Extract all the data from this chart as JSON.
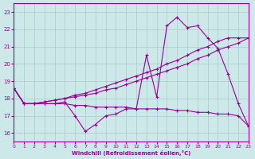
{
  "background_color": "#cce8e8",
  "grid_color": "#aacccc",
  "line_color": "#990099",
  "xlabel": "Windchill (Refroidissement éolien,°C)",
  "xlim": [
    0,
    23
  ],
  "ylim": [
    15.5,
    23.5
  ],
  "yticks": [
    16,
    17,
    18,
    19,
    20,
    21,
    22,
    23
  ],
  "xticks": [
    0,
    1,
    2,
    3,
    4,
    5,
    6,
    7,
    8,
    9,
    10,
    11,
    12,
    13,
    14,
    15,
    16,
    17,
    18,
    19,
    20,
    21,
    22,
    23
  ],
  "curve1_x": [
    0,
    1,
    2,
    3,
    4,
    5,
    6,
    7,
    8,
    9,
    10,
    11,
    12,
    13,
    14,
    15,
    16,
    17,
    18,
    19,
    20,
    21,
    22,
    23
  ],
  "curve1_y": [
    18.6,
    17.7,
    17.7,
    17.7,
    17.7,
    17.8,
    17.0,
    16.1,
    16.5,
    17.0,
    17.1,
    17.4,
    17.4,
    20.5,
    18.1,
    22.2,
    22.7,
    22.1,
    22.2,
    21.5,
    20.9,
    19.4,
    17.7,
    16.4
  ],
  "curve2_x": [
    0,
    1,
    2,
    3,
    4,
    5,
    6,
    7,
    8,
    9,
    10,
    11,
    12,
    13,
    14,
    15,
    16,
    17,
    18,
    19,
    20,
    21,
    22,
    23
  ],
  "curve2_y": [
    18.6,
    17.7,
    17.7,
    17.7,
    17.7,
    17.7,
    17.6,
    17.6,
    17.5,
    17.5,
    17.5,
    17.5,
    17.4,
    17.4,
    17.4,
    17.4,
    17.3,
    17.3,
    17.2,
    17.2,
    17.1,
    17.1,
    17.0,
    16.4
  ],
  "curve3_x": [
    0,
    1,
    2,
    3,
    4,
    5,
    6,
    7,
    8,
    9,
    10,
    11,
    12,
    13,
    14,
    15,
    16,
    17,
    18,
    19,
    20,
    21,
    22,
    23
  ],
  "curve3_y": [
    18.6,
    17.7,
    17.7,
    17.8,
    17.9,
    18.0,
    18.1,
    18.2,
    18.3,
    18.5,
    18.6,
    18.8,
    19.0,
    19.2,
    19.4,
    19.6,
    19.8,
    20.0,
    20.3,
    20.5,
    20.8,
    21.0,
    21.2,
    21.5
  ],
  "curve4_x": [
    0,
    1,
    2,
    3,
    4,
    5,
    6,
    7,
    8,
    9,
    10,
    11,
    12,
    13,
    14,
    15,
    16,
    17,
    18,
    19,
    20,
    21,
    22,
    23
  ],
  "curve4_y": [
    18.6,
    17.7,
    17.7,
    17.8,
    17.9,
    18.0,
    18.2,
    18.3,
    18.5,
    18.7,
    18.9,
    19.1,
    19.3,
    19.5,
    19.7,
    20.0,
    20.2,
    20.5,
    20.8,
    21.0,
    21.3,
    21.5,
    21.5,
    21.5
  ]
}
